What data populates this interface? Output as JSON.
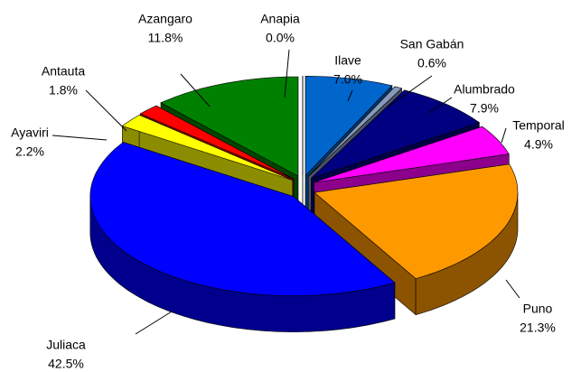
{
  "chart_data": {
    "type": "pie3d",
    "categories": [
      "Ilave",
      "San Gabán",
      "Alumbrado",
      "Temporal",
      "Puno",
      "Juliaca",
      "Ayaviri",
      "Antauta",
      "Azangaro",
      "Anapia"
    ],
    "values": [
      7.0,
      0.6,
      7.9,
      4.9,
      21.3,
      42.5,
      2.2,
      1.8,
      11.8,
      0.0
    ],
    "value_labels": [
      "7.0%",
      "0.6%",
      "7.9%",
      "4.9%",
      "21.3%",
      "42.5%",
      "2.2%",
      "1.8%",
      "11.8%",
      "0.0%"
    ],
    "colors": [
      "#0066cc",
      "#8899bb",
      "#000080",
      "#ff00ff",
      "#ff9900",
      "#0000ff",
      "#ffff00",
      "#ff0000",
      "#008000",
      "#cc9999"
    ]
  }
}
